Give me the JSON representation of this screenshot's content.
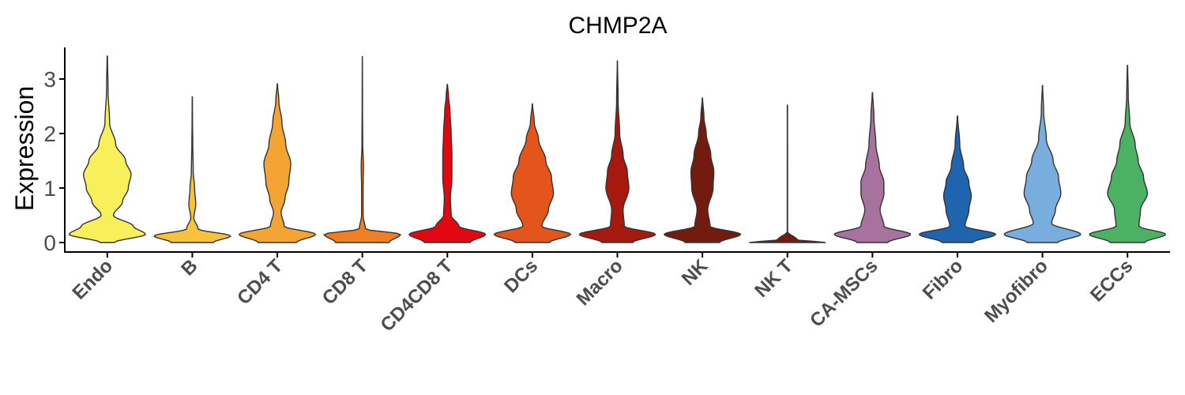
{
  "chart_data": {
    "type": "violin",
    "title": "CHMP2A",
    "xlabel": "",
    "ylabel": "Expression",
    "ylim": [
      -0.15,
      3.6
    ],
    "yticks": [
      "0",
      "1",
      "2",
      "3"
    ],
    "ytick_values": [
      0,
      1,
      2,
      3
    ],
    "categories": [
      "Endo",
      "B",
      "CD4 T",
      "CD8 T",
      "CD4CD8 T",
      "DCs",
      "Macro",
      "NK",
      "NK T",
      "CA-MSCs",
      "Fibro",
      "Myofibro",
      "ECCs"
    ],
    "colors": [
      "#F7F05A",
      "#F9C23C",
      "#F4A433",
      "#F07E22",
      "#E3080F",
      "#E4551B",
      "#A5190F",
      "#741B0F",
      "#741B0F",
      "#A8729F",
      "#1F64AE",
      "#78ADDE",
      "#4BB163"
    ],
    "max": [
      3.43,
      2.68,
      2.92,
      3.42,
      2.91,
      2.55,
      3.34,
      2.66,
      2.53,
      2.76,
      2.33,
      2.89,
      3.26
    ],
    "density": [
      [
        [
          0,
          0.18
        ],
        [
          0.15,
          1.0
        ],
        [
          0.3,
          0.68
        ],
        [
          0.5,
          0.16
        ],
        [
          0.75,
          0.4
        ],
        [
          1.0,
          0.55
        ],
        [
          1.25,
          0.62
        ],
        [
          1.5,
          0.48
        ],
        [
          1.8,
          0.22
        ],
        [
          2.2,
          0.06
        ],
        [
          2.8,
          0.02
        ],
        [
          3.43,
          0.005
        ]
      ],
      [
        [
          0,
          0.55
        ],
        [
          0.12,
          1.0
        ],
        [
          0.25,
          0.15
        ],
        [
          0.45,
          0.04
        ],
        [
          0.7,
          0.09
        ],
        [
          1.0,
          0.06
        ],
        [
          1.3,
          0.025
        ],
        [
          1.8,
          0.012
        ],
        [
          2.3,
          0.005
        ],
        [
          2.68,
          0.003
        ]
      ],
      [
        [
          0,
          0.5
        ],
        [
          0.15,
          1.0
        ],
        [
          0.3,
          0.18
        ],
        [
          0.55,
          0.1
        ],
        [
          0.8,
          0.2
        ],
        [
          1.1,
          0.3
        ],
        [
          1.45,
          0.35
        ],
        [
          1.8,
          0.22
        ],
        [
          2.2,
          0.12
        ],
        [
          2.6,
          0.04
        ],
        [
          2.92,
          0.005
        ]
      ],
      [
        [
          0,
          0.7
        ],
        [
          0.15,
          1.0
        ],
        [
          0.25,
          0.08
        ],
        [
          0.5,
          0.02
        ],
        [
          1.0,
          0.02
        ],
        [
          1.4,
          0.03
        ],
        [
          1.8,
          0.01
        ],
        [
          2.5,
          0.005
        ],
        [
          3.42,
          0.002
        ]
      ],
      [
        [
          0,
          0.6
        ],
        [
          0.15,
          1.0
        ],
        [
          0.3,
          0.3
        ],
        [
          0.5,
          0.1
        ],
        [
          0.8,
          0.08
        ],
        [
          1.2,
          0.12
        ],
        [
          1.6,
          0.12
        ],
        [
          2.0,
          0.1
        ],
        [
          2.4,
          0.07
        ],
        [
          2.7,
          0.03
        ],
        [
          2.91,
          0.005
        ]
      ],
      [
        [
          0,
          0.45
        ],
        [
          0.15,
          1.0
        ],
        [
          0.3,
          0.25
        ],
        [
          0.6,
          0.42
        ],
        [
          0.9,
          0.55
        ],
        [
          1.2,
          0.5
        ],
        [
          1.5,
          0.35
        ],
        [
          1.9,
          0.16
        ],
        [
          2.2,
          0.05
        ],
        [
          2.55,
          0.005
        ]
      ],
      [
        [
          0,
          0.4
        ],
        [
          0.15,
          1.0
        ],
        [
          0.3,
          0.18
        ],
        [
          0.6,
          0.15
        ],
        [
          1.0,
          0.3
        ],
        [
          1.3,
          0.26
        ],
        [
          1.6,
          0.15
        ],
        [
          2.0,
          0.06
        ],
        [
          2.6,
          0.02
        ],
        [
          3.34,
          0.003
        ]
      ],
      [
        [
          0,
          0.45
        ],
        [
          0.15,
          1.0
        ],
        [
          0.3,
          0.2
        ],
        [
          0.6,
          0.14
        ],
        [
          1.0,
          0.28
        ],
        [
          1.3,
          0.3
        ],
        [
          1.6,
          0.22
        ],
        [
          2.0,
          0.1
        ],
        [
          2.3,
          0.04
        ],
        [
          2.66,
          0.005
        ]
      ],
      [
        [
          0,
          1.0
        ],
        [
          0.05,
          0.25
        ],
        [
          0.2,
          0.005
        ],
        [
          2.53,
          0.004
        ]
      ],
      [
        [
          0,
          0.4
        ],
        [
          0.15,
          1.0
        ],
        [
          0.3,
          0.3
        ],
        [
          0.6,
          0.2
        ],
        [
          0.9,
          0.3
        ],
        [
          1.1,
          0.3
        ],
        [
          1.4,
          0.18
        ],
        [
          1.8,
          0.09
        ],
        [
          2.3,
          0.04
        ],
        [
          2.76,
          0.005
        ]
      ],
      [
        [
          0,
          0.4
        ],
        [
          0.15,
          1.0
        ],
        [
          0.3,
          0.2
        ],
        [
          0.6,
          0.3
        ],
        [
          0.85,
          0.36
        ],
        [
          1.1,
          0.3
        ],
        [
          1.4,
          0.16
        ],
        [
          1.8,
          0.06
        ],
        [
          2.33,
          0.005
        ]
      ],
      [
        [
          0,
          0.4
        ],
        [
          0.15,
          1.0
        ],
        [
          0.35,
          0.24
        ],
        [
          0.6,
          0.34
        ],
        [
          0.9,
          0.48
        ],
        [
          1.2,
          0.42
        ],
        [
          1.5,
          0.28
        ],
        [
          1.9,
          0.1
        ],
        [
          2.4,
          0.03
        ],
        [
          2.89,
          0.005
        ]
      ],
      [
        [
          0,
          0.45
        ],
        [
          0.15,
          1.0
        ],
        [
          0.3,
          0.3
        ],
        [
          0.6,
          0.34
        ],
        [
          0.9,
          0.52
        ],
        [
          1.2,
          0.42
        ],
        [
          1.5,
          0.28
        ],
        [
          1.8,
          0.2
        ],
        [
          2.2,
          0.06
        ],
        [
          2.7,
          0.02
        ],
        [
          3.26,
          0.005
        ]
      ]
    ],
    "grid": false,
    "legend": "none"
  }
}
